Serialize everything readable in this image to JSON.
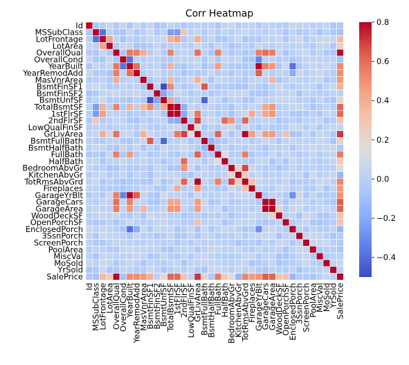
{
  "chart_data": {
    "type": "heatmap",
    "title": "Corr Heatmap",
    "labels": [
      "Id",
      "MSSubClass",
      "LotFrontage",
      "LotArea",
      "OverallQual",
      "OverallCond",
      "YearBuilt",
      "YearRemodAdd",
      "MasVnrArea",
      "BsmtFinSF1",
      "BsmtFinSF2",
      "BsmtUnfSF",
      "TotalBsmtSF",
      "1stFlrSF",
      "2ndFlrSF",
      "LowQualFinSF",
      "GrLivArea",
      "BsmtFullBath",
      "BsmtHalfBath",
      "FullBath",
      "HalfBath",
      "BedroomAbvGr",
      "KitchenAbvGr",
      "TotRmsAbvGrd",
      "Fireplaces",
      "GarageYrBlt",
      "GarageCars",
      "GarageArea",
      "WoodDeckSF",
      "OpenPorchSF",
      "EnclosedPorch",
      "3SsnPorch",
      "ScreenPorch",
      "PoolArea",
      "MiscVal",
      "MoSold",
      "YrSold",
      "SalePrice"
    ],
    "colorbar": {
      "vmin": -0.5,
      "vmax": 0.8,
      "ticks": [
        -0.4,
        -0.2,
        0.0,
        0.2,
        0.4,
        0.6,
        0.8
      ],
      "tick_labels": [
        "−0.4",
        "−0.2",
        "0.0",
        "0.2",
        "0.4",
        "0.6",
        "0.8"
      ]
    },
    "colormap": "coolwarm",
    "grid_line_color": "#ffffff",
    "diagonal": 1.0,
    "correlations": [
      [
        "OverallQual",
        "SalePrice",
        0.79
      ],
      [
        "GrLivArea",
        "SalePrice",
        0.71
      ],
      [
        "GarageCars",
        "SalePrice",
        0.64
      ],
      [
        "GarageArea",
        "SalePrice",
        0.62
      ],
      [
        "TotalBsmtSF",
        "SalePrice",
        0.61
      ],
      [
        "1stFlrSF",
        "SalePrice",
        0.61
      ],
      [
        "FullBath",
        "SalePrice",
        0.56
      ],
      [
        "TotRmsAbvGrd",
        "SalePrice",
        0.53
      ],
      [
        "YearBuilt",
        "SalePrice",
        0.52
      ],
      [
        "YearRemodAdd",
        "SalePrice",
        0.51
      ],
      [
        "GarageYrBlt",
        "SalePrice",
        0.49
      ],
      [
        "MasVnrArea",
        "SalePrice",
        0.48
      ],
      [
        "Fireplaces",
        "SalePrice",
        0.47
      ],
      [
        "BsmtFinSF1",
        "SalePrice",
        0.39
      ],
      [
        "LotFrontage",
        "SalePrice",
        0.35
      ],
      [
        "WoodDeckSF",
        "SalePrice",
        0.32
      ],
      [
        "2ndFlrSF",
        "SalePrice",
        0.32
      ],
      [
        "OpenPorchSF",
        "SalePrice",
        0.32
      ],
      [
        "HalfBath",
        "SalePrice",
        0.28
      ],
      [
        "LotArea",
        "SalePrice",
        0.26
      ],
      [
        "BsmtFullBath",
        "SalePrice",
        0.23
      ],
      [
        "BsmtUnfSF",
        "SalePrice",
        0.21
      ],
      [
        "BedroomAbvGr",
        "SalePrice",
        0.17
      ],
      [
        "KitchenAbvGr",
        "SalePrice",
        -0.14
      ],
      [
        "EnclosedPorch",
        "SalePrice",
        -0.13
      ],
      [
        "MSSubClass",
        "SalePrice",
        -0.08
      ],
      [
        "OverallCond",
        "SalePrice",
        -0.08
      ],
      [
        "GarageCars",
        "GarageArea",
        0.88
      ],
      [
        "YearBuilt",
        "GarageYrBlt",
        0.83
      ],
      [
        "GrLivArea",
        "TotRmsAbvGrd",
        0.83
      ],
      [
        "TotalBsmtSF",
        "1stFlrSF",
        0.82
      ],
      [
        "2ndFlrSF",
        "GrLivArea",
        0.69
      ],
      [
        "BedroomAbvGr",
        "TotRmsAbvGrd",
        0.68
      ],
      [
        "BsmtFinSF1",
        "BsmtFullBath",
        0.65
      ],
      [
        "YearRemodAdd",
        "GarageYrBlt",
        0.64
      ],
      [
        "GrLivArea",
        "FullBath",
        0.63
      ],
      [
        "2ndFlrSF",
        "TotRmsAbvGrd",
        0.62
      ],
      [
        "2ndFlrSF",
        "HalfBath",
        0.61
      ],
      [
        "OverallQual",
        "GarageCars",
        0.6
      ],
      [
        "YearBuilt",
        "YearRemodAdd",
        0.59
      ],
      [
        "OverallQual",
        "GrLivArea",
        0.59
      ],
      [
        "OverallQual",
        "YearBuilt",
        0.57
      ],
      [
        "1stFlrSF",
        "GrLivArea",
        0.57
      ],
      [
        "OverallQual",
        "GarageYrBlt",
        0.55
      ],
      [
        "OverallQual",
        "YearRemodAdd",
        0.55
      ],
      [
        "OverallQual",
        "FullBath",
        0.55
      ],
      [
        "TotRmsAbvGrd",
        "FullBath",
        0.55
      ],
      [
        "YearBuilt",
        "GarageCars",
        0.54
      ],
      [
        "OverallQual",
        "TotalBsmtSF",
        0.54
      ],
      [
        "BsmtFinSF1",
        "TotalBsmtSF",
        0.52
      ],
      [
        "2ndFlrSF",
        "BedroomAbvGr",
        0.5
      ],
      [
        "OverallQual",
        "GarageArea",
        0.56
      ],
      [
        "1stFlrSF",
        "GarageArea",
        0.49
      ],
      [
        "TotalBsmtSF",
        "GarageArea",
        0.49
      ],
      [
        "YearBuilt",
        "FullBath",
        0.47
      ],
      [
        "GrLivArea",
        "GarageArea",
        0.47
      ],
      [
        "GrLivArea",
        "GarageCars",
        0.47
      ],
      [
        "GrLivArea",
        "Fireplaces",
        0.46
      ],
      [
        "1stFlrSF",
        "GarageCars",
        0.44
      ],
      [
        "TotalBsmtSF",
        "GarageCars",
        0.43
      ],
      [
        "YearBuilt",
        "TotalBsmtSF",
        0.39
      ],
      [
        "YearBuilt",
        "GarageArea",
        0.48
      ],
      [
        "OverallQual",
        "MasVnrArea",
        0.41
      ],
      [
        "TotRmsAbvGrd",
        "Fireplaces",
        0.33
      ],
      [
        "LotFrontage",
        "1stFlrSF",
        0.46
      ],
      [
        "LotFrontage",
        "TotalBsmtSF",
        0.39
      ],
      [
        "LotFrontage",
        "GrLivArea",
        0.4
      ],
      [
        "LotFrontage",
        "LotArea",
        0.43
      ],
      [
        "MSSubClass",
        "LotFrontage",
        -0.39
      ],
      [
        "MSSubClass",
        "2ndFlrSF",
        0.31
      ],
      [
        "MSSubClass",
        "1stFlrSF",
        -0.25
      ],
      [
        "MSSubClass",
        "TotalBsmtSF",
        -0.24
      ],
      [
        "BsmtFinSF1",
        "BsmtUnfSF",
        -0.5
      ],
      [
        "BsmtUnfSF",
        "BsmtFullBath",
        -0.42
      ],
      [
        "BsmtFinSF2",
        "BsmtUnfSF",
        -0.21
      ],
      [
        "BsmtUnfSF",
        "TotalBsmtSF",
        0.42
      ],
      [
        "1stFlrSF",
        "2ndFlrSF",
        -0.2
      ],
      [
        "TotalBsmtSF",
        "2ndFlrSF",
        -0.17
      ],
      [
        "YearBuilt",
        "EnclosedPorch",
        -0.39
      ],
      [
        "YearBuilt",
        "OverallCond",
        -0.38
      ],
      [
        "OverallCond",
        "GarageYrBlt",
        -0.33
      ],
      [
        "YearRemodAdd",
        "EnclosedPorch",
        -0.19
      ],
      [
        "GarageYrBlt",
        "EnclosedPorch",
        -0.3
      ],
      [
        "KitchenAbvGr",
        "BedroomAbvGr",
        0.2
      ],
      [
        "KitchenAbvGr",
        "TotRmsAbvGrd",
        0.26
      ],
      [
        "BsmtFullBath",
        "BsmtHalfBath",
        -0.15
      ],
      [
        "FullBath",
        "HalfBath",
        0.14
      ],
      [
        "MasVnrArea",
        "TotalBsmtSF",
        0.36
      ],
      [
        "MasVnrArea",
        "GrLivArea",
        0.39
      ],
      [
        "MasVnrArea",
        "GarageArea",
        0.37
      ],
      [
        "Fireplaces",
        "1stFlrSF",
        0.41
      ],
      [
        "WoodDeckSF",
        "GarageArea",
        0.22
      ],
      [
        "OpenPorchSF",
        "GrLivArea",
        0.33
      ],
      [
        "LowQualFinSF",
        "GrLivArea",
        0.13
      ]
    ]
  }
}
